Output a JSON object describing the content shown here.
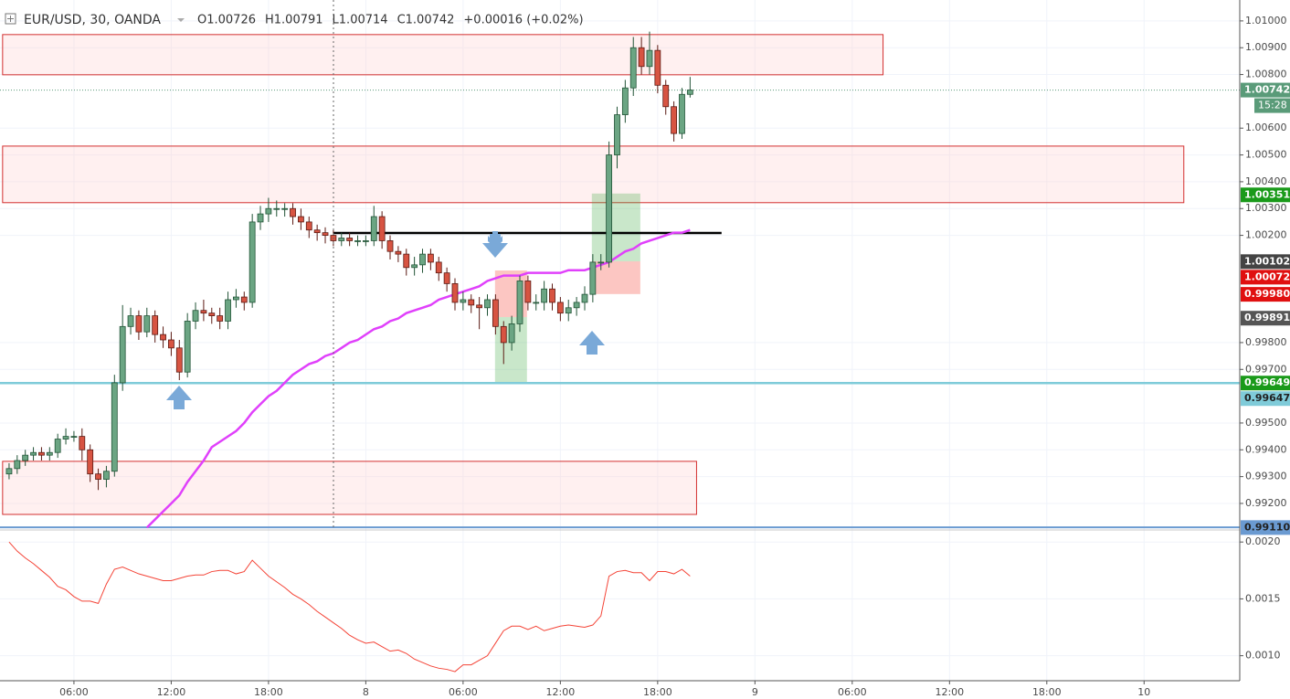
{
  "chart_data": [
    {
      "type": "candlestick",
      "title": "EUR/USD, 30, OANDA",
      "legend_items": [
        "O1.00726",
        "H1.00791",
        "L1.00714",
        "C1.00742",
        "+0.00016 (+0.02%)"
      ],
      "xlim": [
        1.44,
        77.9
      ],
      "ylim": [
        0.99101,
        1.01078
      ],
      "yticks": [
        {
          "value": 1.01,
          "label": "1.01000"
        },
        {
          "value": 1.009,
          "label": "1.00900"
        },
        {
          "value": 1.008,
          "label": "1.00800"
        },
        {
          "value": 1.006,
          "label": "1.00600"
        },
        {
          "value": 1.005,
          "label": "1.00500"
        },
        {
          "value": 1.004,
          "label": "1.00400"
        },
        {
          "value": 1.003,
          "label": "1.00300"
        },
        {
          "value": 1.002,
          "label": "1.00200"
        },
        {
          "value": 0.998,
          "label": "0.99800"
        },
        {
          "value": 0.997,
          "label": "0.99700"
        },
        {
          "value": 0.995,
          "label": "0.99500"
        },
        {
          "value": 0.994,
          "label": "0.99400"
        },
        {
          "value": 0.993,
          "label": "0.99300"
        },
        {
          "value": 0.992,
          "label": "0.99200"
        }
      ],
      "grid": true,
      "up_color": "#6ba583",
      "down_color": "#d75442",
      "up_border": "#225437",
      "down_border": "#5b1a13",
      "x": [
        2,
        2.5,
        3,
        3.5,
        4,
        4.5,
        5,
        5.5,
        6,
        6.5,
        7,
        7.5,
        8,
        8.5,
        9,
        9.5,
        10,
        10.5,
        11,
        11.5,
        12,
        12.5,
        13,
        13.5,
        14,
        14.5,
        15,
        15.5,
        16,
        16.5,
        17,
        17.5,
        18,
        18.5,
        19,
        19.5,
        20,
        20.5,
        21,
        21.5,
        22,
        22.5,
        23,
        23.5,
        24,
        24.5,
        25,
        25.5,
        26,
        26.5,
        27,
        27.5,
        28,
        28.5,
        29,
        29.5,
        30,
        30.5,
        31,
        31.5,
        32,
        32.5,
        33,
        33.5,
        34,
        34.5,
        35,
        35.5,
        36,
        36.5,
        37,
        37.5,
        38,
        38.5,
        39,
        39.5,
        40,
        40.5,
        41,
        41.5,
        42,
        42.5,
        43,
        43.5,
        44
      ],
      "open": [
        0.9931,
        0.9933,
        0.9936,
        0.9938,
        0.9939,
        0.9938,
        0.9939,
        0.9944,
        0.9945,
        0.9945,
        0.994,
        0.9931,
        0.9929,
        0.9932,
        0.9965,
        0.9986,
        0.999,
        0.9984,
        0.999,
        0.9983,
        0.9981,
        0.9978,
        0.9969,
        0.9988,
        0.9992,
        0.9991,
        0.999,
        0.9988,
        0.9996,
        0.9997,
        0.9995,
        1.0025,
        1.0028,
        1.003,
        1.003,
        1.003,
        1.0027,
        1.0025,
        1.0022,
        1.0021,
        1.002,
        1.0018,
        1.0019,
        1.0018,
        1.0018,
        1.0018,
        1.0027,
        1.0018,
        1.0014,
        1.0013,
        1.0008,
        1.0009,
        1.0013,
        1.001,
        1.0006,
        1.0002,
        0.9995,
        0.9996,
        0.9994,
        0.9993,
        0.9996,
        0.9986,
        0.998,
        0.9987,
        1.0003,
        0.9995,
        0.9995,
        1.0,
        0.9995,
        0.9991,
        0.9993,
        0.9995,
        0.9998,
        1.001,
        1.001,
        1.005,
        1.0065,
        1.0075,
        1.009,
        1.0083,
        1.0089,
        1.0076,
        1.0068,
        1.0058,
        1.00726
      ],
      "high": [
        0.9935,
        0.9938,
        0.994,
        0.9941,
        0.9941,
        0.9941,
        0.9946,
        0.9948,
        0.9947,
        0.9948,
        0.9942,
        0.9933,
        0.9934,
        0.9968,
        0.9994,
        0.9993,
        0.9992,
        0.9993,
        0.9992,
        0.9986,
        0.9984,
        0.9981,
        0.9991,
        0.9995,
        0.9996,
        0.9993,
        0.9993,
        0.9999,
        1.0,
        0.9999,
        1.0028,
        1.0031,
        1.0034,
        1.0033,
        1.0032,
        1.0032,
        1.003,
        1.0027,
        1.0024,
        1.0023,
        1.0022,
        1.0021,
        1.0021,
        1.002,
        1.002,
        1.0031,
        1.0029,
        1.002,
        1.0016,
        1.0015,
        1.0012,
        1.0015,
        1.0015,
        1.0012,
        1.0008,
        1.0004,
        0.9999,
        0.9998,
        0.9997,
        0.9998,
        0.9998,
        0.9988,
        0.999,
        1.0005,
        1.0005,
        0.9998,
        1.0003,
        1.0002,
        0.9997,
        0.9996,
        0.9997,
        1.0001,
        1.0013,
        1.0013,
        1.0055,
        1.0068,
        1.0078,
        1.0094,
        1.0094,
        1.0096,
        1.0091,
        1.0078,
        1.007,
        1.0075,
        1.00791
      ],
      "low": [
        0.9929,
        0.9931,
        0.9934,
        0.9936,
        0.9936,
        0.9936,
        0.9937,
        0.9942,
        0.9943,
        0.9936,
        0.9928,
        0.9925,
        0.9926,
        0.993,
        0.9962,
        0.9983,
        0.9981,
        0.9982,
        0.998,
        0.9978,
        0.9975,
        0.9966,
        0.9967,
        0.9985,
        0.9988,
        0.9987,
        0.9985,
        0.9985,
        0.9993,
        0.9992,
        0.9993,
        1.0022,
        1.0025,
        1.0027,
        1.0027,
        1.0024,
        1.0022,
        1.0019,
        1.0018,
        1.0017,
        1.0016,
        1.0016,
        1.0016,
        1.0016,
        1.0016,
        1.0016,
        1.0015,
        1.0011,
        1.001,
        1.0005,
        1.0005,
        1.0006,
        1.0007,
        1.0003,
        0.9999,
        0.9992,
        0.9992,
        0.9991,
        0.9985,
        0.999,
        0.9983,
        0.9972,
        0.9977,
        0.9984,
        0.9992,
        0.9992,
        0.9992,
        0.9992,
        0.9988,
        0.9988,
        0.999,
        0.9992,
        0.9995,
        1.0007,
        1.0008,
        1.0045,
        1.0062,
        1.0072,
        1.008,
        1.008,
        1.0073,
        1.0065,
        1.0055,
        1.0056,
        1.00714
      ],
      "close": [
        0.9933,
        0.9936,
        0.9938,
        0.9939,
        0.9938,
        0.9939,
        0.9944,
        0.9945,
        0.9945,
        0.994,
        0.9931,
        0.9929,
        0.9932,
        0.9965,
        0.9986,
        0.999,
        0.9984,
        0.999,
        0.9983,
        0.9981,
        0.9978,
        0.9969,
        0.9988,
        0.9992,
        0.9991,
        0.999,
        0.9988,
        0.9996,
        0.9997,
        0.9995,
        1.0025,
        1.0028,
        1.003,
        1.003,
        1.003,
        1.0027,
        1.0025,
        1.0022,
        1.0021,
        1.002,
        1.0018,
        1.0019,
        1.0018,
        1.0018,
        1.0018,
        1.0027,
        1.0018,
        1.0014,
        1.0013,
        1.0008,
        1.0009,
        1.0013,
        1.001,
        1.0006,
        1.0002,
        0.9995,
        0.9996,
        0.9994,
        0.9993,
        0.9996,
        0.9986,
        0.998,
        0.9987,
        1.0003,
        0.9995,
        0.9995,
        1.0,
        0.9995,
        0.9991,
        0.9993,
        0.9995,
        0.9998,
        1.001,
        1.001,
        1.005,
        1.0065,
        1.0075,
        1.009,
        1.0083,
        1.0089,
        1.0076,
        1.0068,
        1.0058,
        1.00726,
        1.00742
      ],
      "overlays": [
        {
          "color": "#e040fb",
          "values": [
            null,
            null,
            null,
            null,
            null,
            null,
            null,
            null,
            null,
            null,
            null,
            null,
            null,
            null,
            null,
            null,
            null,
            0.9911,
            0.9914,
            0.9917,
            0.992,
            0.9923,
            0.9928,
            0.9932,
            0.9936,
            0.9941,
            0.9943,
            0.9945,
            0.9947,
            0.995,
            0.9954,
            0.9957,
            0.996,
            0.9962,
            0.9965,
            0.9968,
            0.997,
            0.9972,
            0.9973,
            0.9975,
            0.9976,
            0.9978,
            0.998,
            0.9981,
            0.9983,
            0.9985,
            0.9986,
            0.9988,
            0.9989,
            0.9991,
            0.9992,
            0.9993,
            0.9994,
            0.9996,
            0.9997,
            0.9998,
            0.9999,
            1.0,
            1.0001,
            1.0003,
            1.0004,
            1.0005,
            1.0005,
            1.0005,
            1.0006,
            1.0006,
            1.0006,
            1.0006,
            1.0006,
            1.0007,
            1.0007,
            1.0007,
            1.0008,
            1.0009,
            1.001,
            1.0012,
            1.0014,
            1.0015,
            1.0017,
            1.0018,
            1.0019,
            1.002,
            1.0021,
            1.0021,
            1.0022
          ]
        }
      ],
      "zones": [
        {
          "top": 1.00949,
          "bottom": 1.00799,
          "x0": 1.6,
          "x1": 55.9,
          "fill": "rgba(255,205,205,0.3)",
          "stroke": "#d32f2f"
        },
        {
          "top": 1.00533,
          "bottom": 1.00322,
          "x0": 1.6,
          "x1": 74.45,
          "fill": "rgba(255,205,205,0.3)",
          "stroke": "#d32f2f"
        },
        {
          "top": 0.99357,
          "bottom": 0.99159,
          "x0": 1.6,
          "x1": 44.4,
          "fill": "rgba(255,205,205,0.3)",
          "stroke": "#d32f2f"
        },
        {
          "top": 1.00069,
          "bottom": 0.99895,
          "x0": 31.97,
          "x1": 33.94,
          "fill": "rgba(244,67,54,0.3)",
          "stroke": "none"
        },
        {
          "top": 0.99895,
          "bottom": 0.99653,
          "x0": 31.97,
          "x1": 33.94,
          "fill": "rgba(76,175,80,0.3)",
          "stroke": "none"
        },
        {
          "top": 1.00356,
          "bottom": 1.00103,
          "x0": 37.94,
          "x1": 40.93,
          "fill": "rgba(76,175,80,0.3)",
          "stroke": "none"
        },
        {
          "top": 1.00103,
          "bottom": 0.99981,
          "x0": 37.94,
          "x1": 40.93,
          "fill": "rgba(244,67,54,0.3)",
          "stroke": "none"
        }
      ],
      "hlines": [
        {
          "value": 1.00209,
          "x0": 22.0,
          "x1": 45.94,
          "color": "#000000",
          "width": 2.5
        },
        {
          "value": 0.99649,
          "color": "#7fcbd9",
          "width": 2.5
        },
        {
          "value": 0.99111,
          "color": "#6a9ad1",
          "width": 2
        },
        {
          "value": 1.00742,
          "color": "#5a9b79",
          "width": 1,
          "dash": "1 2"
        }
      ],
      "price_labels": [
        {
          "value": 1.00742,
          "label": "1.00742",
          "color": "#5a9b79",
          "text_color": "#ffffff"
        },
        {
          "value": 1.00351,
          "label": "1.00351",
          "color": "#1a9a1a",
          "text_color": "#ffffff"
        },
        {
          "value": 1.00102,
          "label": "1.00102",
          "color": "#444444",
          "text_color": "#ffffff"
        },
        {
          "value": 1.00072,
          "label": "1.00072",
          "color": "#e01010",
          "text_color": "#ffffff"
        },
        {
          "value": 0.9998,
          "label": "0.99980",
          "color": "#e01010",
          "text_color": "#ffffff"
        },
        {
          "value": 0.99891,
          "label": "0.99891",
          "color": "#555555",
          "text_color": "#ffffff"
        },
        {
          "value": 0.99649,
          "label": "0.99649",
          "color": "#1a9a1a",
          "text_color": "#ffffff"
        },
        {
          "value": 0.99647,
          "label": "0.99647",
          "color": "#7fcbd9",
          "text_color": "#222222"
        },
        {
          "value": 0.9911,
          "label": "0.99110",
          "color": "#6a9ad1",
          "text_color": "#222222"
        }
      ],
      "countdown": "15:28"
    },
    {
      "type": "line",
      "xlim": [
        1.44,
        77.9
      ],
      "ylim": [
        0.00078,
        0.00209
      ],
      "yticks": [
        {
          "value": 0.002,
          "label": "0.0020"
        },
        {
          "value": 0.0015,
          "label": "0.0015"
        },
        {
          "value": 0.001,
          "label": "0.0010"
        }
      ],
      "xticks": [
        {
          "value": 6,
          "label": "06:00"
        },
        {
          "value": 12,
          "label": "12:00"
        },
        {
          "value": 18,
          "label": "18:00"
        },
        {
          "value": 24,
          "label": "8"
        },
        {
          "value": 30,
          "label": "06:00"
        },
        {
          "value": 36,
          "label": "12:00"
        },
        {
          "value": 42,
          "label": "18:00"
        },
        {
          "value": 48,
          "label": "9"
        },
        {
          "value": 54,
          "label": "06:00"
        },
        {
          "value": 60,
          "label": "12:00"
        },
        {
          "value": 66,
          "label": "18:00"
        },
        {
          "value": 72,
          "label": "10"
        }
      ],
      "grid": true,
      "color": "#f44336",
      "values": [
        0.002,
        0.00192,
        0.00186,
        0.00181,
        0.00175,
        0.00169,
        0.00161,
        0.00158,
        0.00152,
        0.00148,
        0.00148,
        0.00146,
        0.00163,
        0.00176,
        0.00178,
        0.00175,
        0.00172,
        0.0017,
        0.00168,
        0.00166,
        0.00166,
        0.00168,
        0.0017,
        0.00171,
        0.00171,
        0.00174,
        0.00175,
        0.00175,
        0.00172,
        0.00174,
        0.00184,
        0.00177,
        0.0017,
        0.00165,
        0.0016,
        0.00154,
        0.0015,
        0.00145,
        0.00139,
        0.00134,
        0.00129,
        0.00124,
        0.00118,
        0.00114,
        0.00111,
        0.00112,
        0.00108,
        0.00104,
        0.00105,
        0.00102,
        0.00097,
        0.00094,
        0.00091,
        0.00089,
        0.00088,
        0.00086,
        0.00092,
        0.00092,
        0.00096,
        0.001,
        0.00111,
        0.00122,
        0.00126,
        0.00126,
        0.00123,
        0.00126,
        0.00122,
        0.00124,
        0.00126,
        0.00127,
        0.00126,
        0.00125,
        0.00127,
        0.00135,
        0.0017,
        0.00174,
        0.00175,
        0.00173,
        0.00173,
        0.00166,
        0.00174,
        0.00174,
        0.00172,
        0.00176,
        0.0017
      ]
    }
  ]
}
